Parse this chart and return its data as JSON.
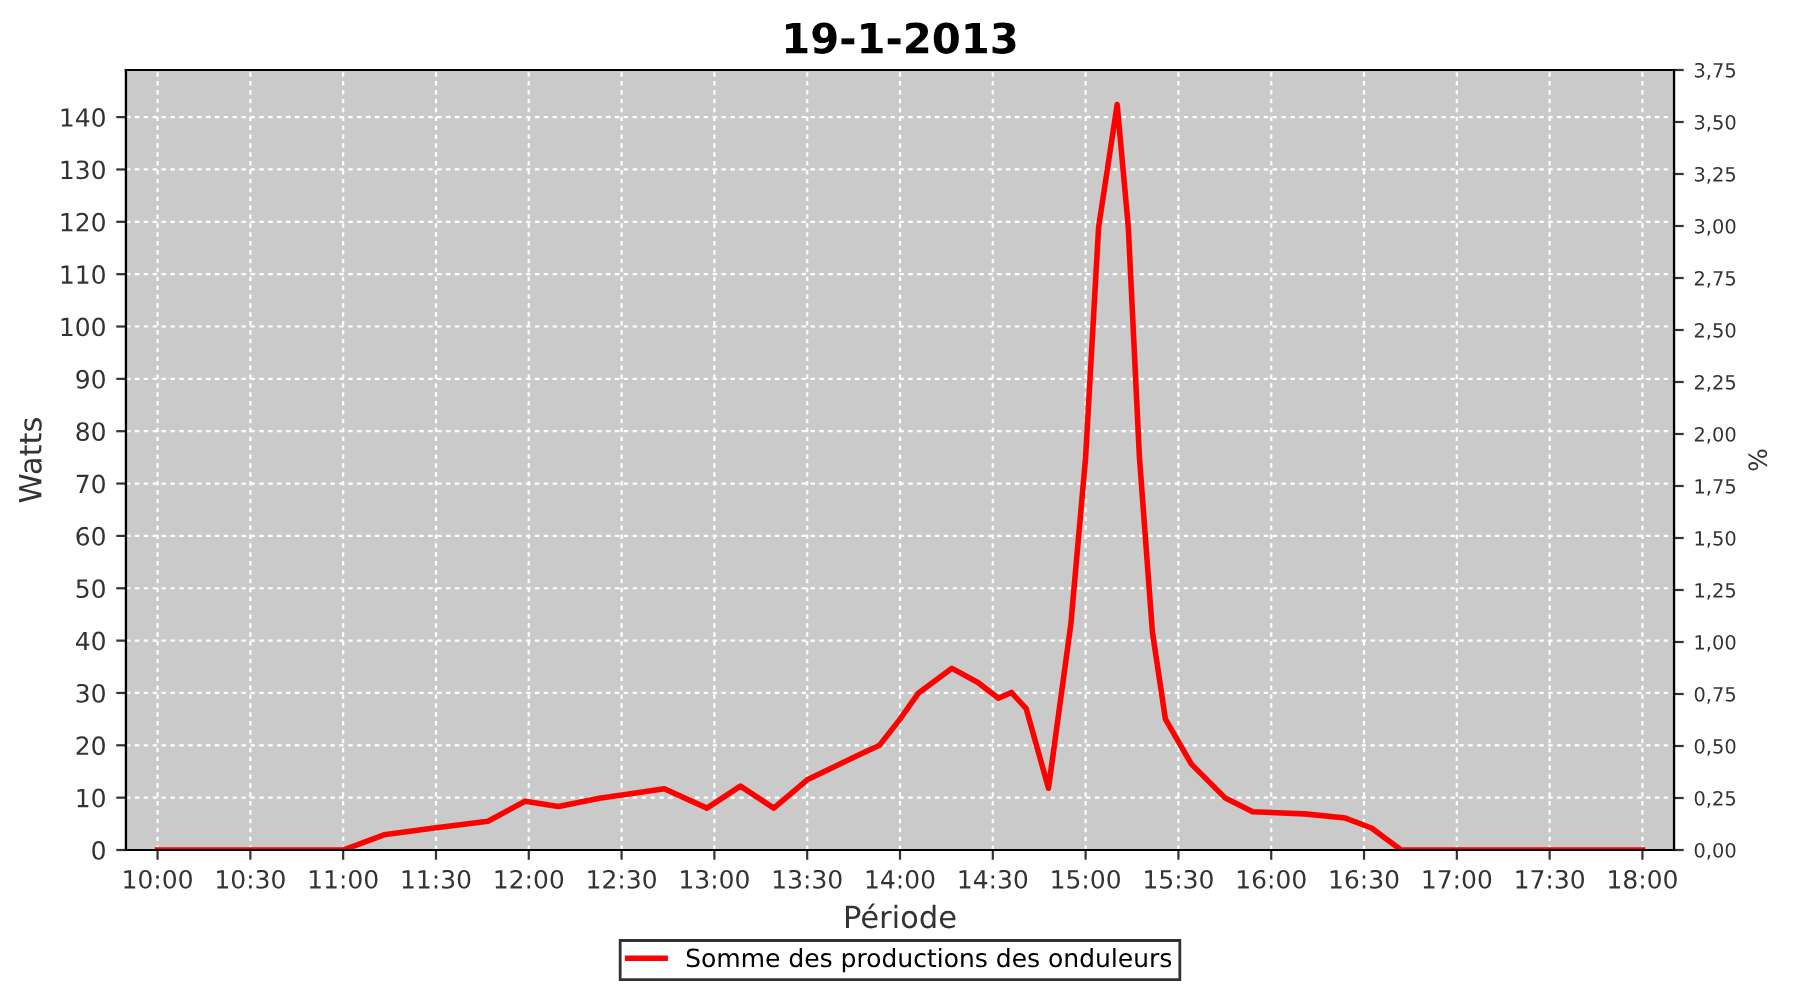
{
  "chart_data": {
    "type": "line",
    "title": "19-1-2013",
    "xlabel": "Période",
    "ylabel": "Watts",
    "y2label": "%",
    "series": [
      {
        "name": "Somme des productions des onduleurs",
        "color": "#ff0000",
        "x": [
          10.0,
          11.0,
          11.22,
          11.49,
          11.78,
          11.98,
          12.16,
          12.38,
          12.52,
          12.73,
          12.96,
          13.14,
          13.32,
          13.5,
          13.78,
          13.89,
          14.0,
          14.1,
          14.28,
          14.42,
          14.53,
          14.6,
          14.68,
          14.8,
          14.92,
          15.0,
          15.07,
          15.17,
          15.23,
          15.29,
          15.36,
          15.43,
          15.57,
          15.75,
          15.9,
          16.18,
          16.4,
          16.54,
          16.7,
          18.0
        ],
        "values": [
          0,
          0,
          2.9,
          4.2,
          5.5,
          9.3,
          8.3,
          9.9,
          10.6,
          11.7,
          8,
          12.2,
          8,
          13.4,
          18.2,
          20,
          25,
          30,
          34.7,
          32,
          29,
          30.1,
          27,
          11.8,
          43,
          75,
          119,
          142.4,
          119,
          75,
          41.6,
          25,
          16.4,
          10,
          7.3,
          6.9,
          6.1,
          4.2,
          0,
          0
        ]
      }
    ],
    "xlim": [
      9.83,
      18.17
    ],
    "xticks": [
      {
        "value": 10,
        "label": "10:00"
      },
      {
        "value": 10.5,
        "label": "10:30"
      },
      {
        "value": 11,
        "label": "11:00"
      },
      {
        "value": 11.5,
        "label": "11:30"
      },
      {
        "value": 12,
        "label": "12:00"
      },
      {
        "value": 12.5,
        "label": "12:30"
      },
      {
        "value": 13,
        "label": "13:00"
      },
      {
        "value": 13.5,
        "label": "13:30"
      },
      {
        "value": 14,
        "label": "14:00"
      },
      {
        "value": 14.5,
        "label": "14:30"
      },
      {
        "value": 15,
        "label": "15:00"
      },
      {
        "value": 15.5,
        "label": "15:30"
      },
      {
        "value": 16,
        "label": "16:00"
      },
      {
        "value": 16.5,
        "label": "16:30"
      },
      {
        "value": 17,
        "label": "17:00"
      },
      {
        "value": 17.5,
        "label": "17:30"
      },
      {
        "value": 18,
        "label": "18:00"
      }
    ],
    "ylim": [
      0,
      149
    ],
    "yticks": [
      0,
      10,
      20,
      30,
      40,
      50,
      60,
      70,
      80,
      90,
      100,
      110,
      120,
      130,
      140
    ],
    "y2lim": [
      0,
      3.75
    ],
    "y2ticks": [
      {
        "value": 0,
        "label": "0,00"
      },
      {
        "value": 0.25,
        "label": "0,25"
      },
      {
        "value": 0.5,
        "label": "0,50"
      },
      {
        "value": 0.75,
        "label": "0,75"
      },
      {
        "value": 1,
        "label": "1,00"
      },
      {
        "value": 1.25,
        "label": "1,25"
      },
      {
        "value": 1.5,
        "label": "1,50"
      },
      {
        "value": 1.75,
        "label": "1,75"
      },
      {
        "value": 2,
        "label": "2,00"
      },
      {
        "value": 2.25,
        "label": "2,25"
      },
      {
        "value": 2.5,
        "label": "2,50"
      },
      {
        "value": 2.75,
        "label": "2,75"
      },
      {
        "value": 3,
        "label": "3,00"
      },
      {
        "value": 3.25,
        "label": "3,25"
      },
      {
        "value": 3.5,
        "label": "3,50"
      },
      {
        "value": 3.75,
        "label": "3,75"
      }
    ],
    "grid": true,
    "legend": "bottom",
    "marker": "none",
    "line_style": "solid"
  }
}
